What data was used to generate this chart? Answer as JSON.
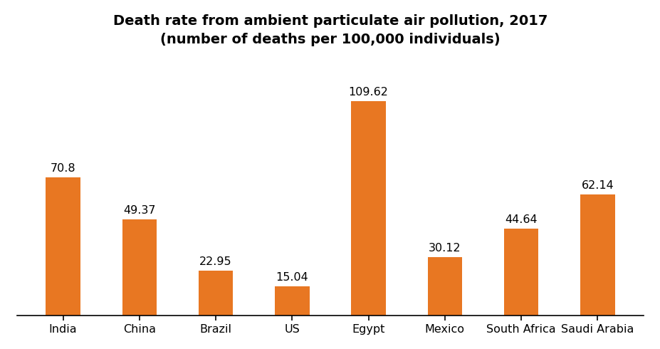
{
  "title_line1": "Death rate from ambient particulate air pollution, 2017",
  "title_line2": "(number of deaths per 100,000 individuals)",
  "categories": [
    "India",
    "China",
    "Brazil",
    "US",
    "Egypt",
    "Mexico",
    "South Africa",
    "Saudi Arabia"
  ],
  "values": [
    70.8,
    49.37,
    22.95,
    15.04,
    109.62,
    30.12,
    44.64,
    62.14
  ],
  "bar_color": "#E87722",
  "background_color": "#ffffff",
  "label_fontsize": 11.5,
  "title_fontsize": 14,
  "tick_fontsize": 11.5,
  "ylim": [
    0,
    130
  ],
  "bar_width": 0.45,
  "figwidth": 9.28,
  "figheight": 4.9,
  "dpi": 100
}
